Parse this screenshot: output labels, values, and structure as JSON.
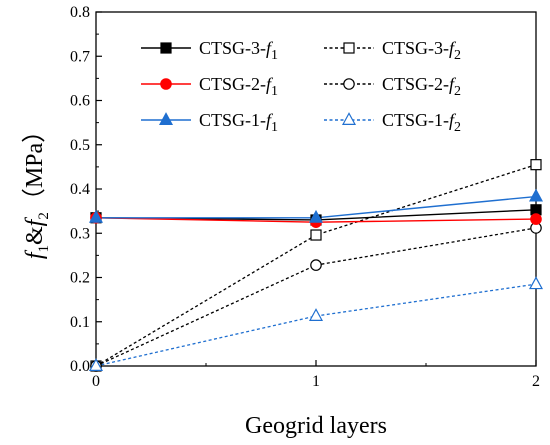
{
  "chart_data": {
    "type": "line",
    "xlabel": "Geogrid layers",
    "ylabel": {
      "f1_base": "f",
      "f1_sub": "1",
      "amp": "&",
      "f2_base": "f",
      "f2_sub": "2",
      "unit": "（MPa）"
    },
    "x": [
      0,
      1,
      2
    ],
    "xticks": [
      "0",
      "1",
      "2"
    ],
    "xlim": [
      0,
      2
    ],
    "ylim": [
      0,
      0.8
    ],
    "yticks": [
      "0.0",
      "0.1",
      "0.2",
      "0.3",
      "0.4",
      "0.5",
      "0.6",
      "0.7",
      "0.8"
    ],
    "yticks_values": [
      0.0,
      0.1,
      0.2,
      0.3,
      0.4,
      0.5,
      0.6,
      0.7,
      0.8
    ],
    "grid": false,
    "legend_placement": "top-left",
    "series": [
      {
        "name_base": "CTSG-3-",
        "name_f": "f",
        "name_sub": "1",
        "values": [
          0.335,
          0.33,
          0.353
        ],
        "color": "#000000",
        "marker": "square-filled",
        "dash": "solid"
      },
      {
        "name_base": "CTSG-2-",
        "name_f": "f",
        "name_sub": "1",
        "values": [
          0.335,
          0.325,
          0.332
        ],
        "color": "#ff0000",
        "marker": "circle-filled",
        "dash": "solid"
      },
      {
        "name_base": "CTSG-1-",
        "name_f": "f",
        "name_sub": "1",
        "values": [
          0.335,
          0.335,
          0.383
        ],
        "color": "#1f6fd0",
        "marker": "triangle-filled",
        "dash": "solid"
      },
      {
        "name_base": "CTSG-3-",
        "name_f": "f",
        "name_sub": "2",
        "values": [
          0.0,
          0.296,
          0.455
        ],
        "color": "#000000",
        "marker": "square-open",
        "dash": "dashed"
      },
      {
        "name_base": "CTSG-2-",
        "name_f": "f",
        "name_sub": "2",
        "values": [
          0.0,
          0.228,
          0.312
        ],
        "color": "#000000",
        "marker": "circle-open",
        "dash": "dashed"
      },
      {
        "name_base": "CTSG-1-",
        "name_f": "f",
        "name_sub": "2",
        "values": [
          0.0,
          0.113,
          0.185
        ],
        "color": "#1f6fd0",
        "marker": "triangle-open",
        "dash": "dashed"
      }
    ]
  }
}
